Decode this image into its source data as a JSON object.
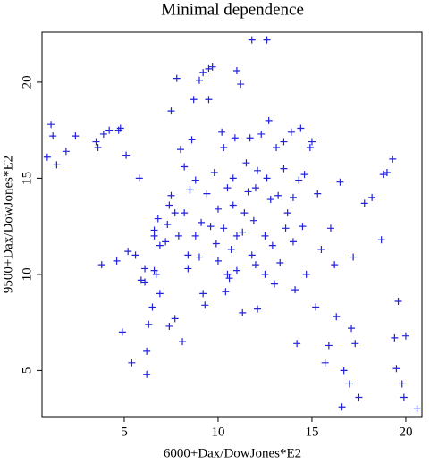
{
  "chart_data": {
    "type": "scatter",
    "title": "Minimal dependence",
    "x_label": "6000+Dax/DowJones*E2",
    "y_label": "9500+Dax/DowJones*E2",
    "marker": "+",
    "color": "#2222dd",
    "xlim": [
      0.62,
      20.86
    ],
    "ylim": [
      2.6,
      22.6
    ],
    "xticks": [
      5,
      10,
      15,
      20
    ],
    "yticks": [
      5,
      10,
      15,
      20
    ],
    "x": [
      0.9,
      1.1,
      1.2,
      1.4,
      1.9,
      2.4,
      3.5,
      3.6,
      3.9,
      4.2,
      4.7,
      4.8,
      3.8,
      4.6,
      4.9,
      5.1,
      5.2,
      5.4,
      5.6,
      5.8,
      5.9,
      6.1,
      6.1,
      6.2,
      6.2,
      6.3,
      6.5,
      6.6,
      6.7,
      6.6,
      6.6,
      6.8,
      6.9,
      6.9,
      7.2,
      7.3,
      7.4,
      7.4,
      7.5,
      7.5,
      7.7,
      7.7,
      7.8,
      7.9,
      8.0,
      8.1,
      8.2,
      8.2,
      8.4,
      8.4,
      8.5,
      8.6,
      8.7,
      8.8,
      8.8,
      9.0,
      9.0,
      9.1,
      9.2,
      9.2,
      9.3,
      9.4,
      9.5,
      9.5,
      9.6,
      9.7,
      9.8,
      9.9,
      10.0,
      10.0,
      10.2,
      10.3,
      10.3,
      10.4,
      10.5,
      10.6,
      10.7,
      10.8,
      10.9,
      11.0,
      11.0,
      11.2,
      11.3,
      11.3,
      11.4,
      11.6,
      11.7,
      11.8,
      11.8,
      11.9,
      12.0,
      12.1,
      12.1,
      12.3,
      12.5,
      12.6,
      12.6,
      12.7,
      12.8,
      12.9,
      13.0,
      13.1,
      13.2,
      13.3,
      13.5,
      13.6,
      13.7,
      13.9,
      14.0,
      14.1,
      14.2,
      14.3,
      14.4,
      14.5,
      14.6,
      14.7,
      14.9,
      15.0,
      15.2,
      15.3,
      15.5,
      15.7,
      15.9,
      16.0,
      16.2,
      16.3,
      16.5,
      16.6,
      16.7,
      17.0,
      17.1,
      17.2,
      17.3,
      17.5,
      17.8,
      18.2,
      18.7,
      18.8,
      19.0,
      19.3,
      19.4,
      19.5,
      19.6,
      19.8,
      19.9,
      20.0,
      20.6,
      14.0,
      12.0,
      11.5,
      10.8,
      13.5,
      12.5,
      11.0,
      10.5
    ],
    "y": [
      16.1,
      17.8,
      17.2,
      15.7,
      16.4,
      17.2,
      16.9,
      16.6,
      17.3,
      17.5,
      17.5,
      17.6,
      10.5,
      10.7,
      7.0,
      16.2,
      11.2,
      5.4,
      11.0,
      15.0,
      9.7,
      9.6,
      10.3,
      6.0,
      4.8,
      7.4,
      8.3,
      10.2,
      10.0,
      12.0,
      12.3,
      12.9,
      9.0,
      11.5,
      11.7,
      12.6,
      7.3,
      13.6,
      18.5,
      14.1,
      13.2,
      7.7,
      20.2,
      12.0,
      16.5,
      6.5,
      15.6,
      13.2,
      11.0,
      10.3,
      14.4,
      17.0,
      19.1,
      12.0,
      14.9,
      20.1,
      10.9,
      12.7,
      20.5,
      9.0,
      8.4,
      14.2,
      20.7,
      19.1,
      12.5,
      20.8,
      15.3,
      11.6,
      13.4,
      10.7,
      17.4,
      16.6,
      12.4,
      9.1,
      14.5,
      9.8,
      11.3,
      13.6,
      17.1,
      10.2,
      20.6,
      19.9,
      12.2,
      8.0,
      13.2,
      14.3,
      17.1,
      22.2,
      11.0,
      12.8,
      10.5,
      15.4,
      8.2,
      17.3,
      12.0,
      22.2,
      15.0,
      18.0,
      13.9,
      11.5,
      9.5,
      16.6,
      14.1,
      10.6,
      16.9,
      12.4,
      13.2,
      17.4,
      11.7,
      9.2,
      6.4,
      14.9,
      17.6,
      12.5,
      15.2,
      10.0,
      16.6,
      16.9,
      8.3,
      14.2,
      11.3,
      5.4,
      6.3,
      12.4,
      10.5,
      7.8,
      14.8,
      3.1,
      5.0,
      4.3,
      7.2,
      10.9,
      6.4,
      3.6,
      13.7,
      14.0,
      11.8,
      15.2,
      15.3,
      16.0,
      6.7,
      5.1,
      8.6,
      4.3,
      3.6,
      6.8,
      3.0,
      14.0,
      14.5,
      15.8,
      15.0,
      15.5,
      10.0,
      12.0,
      10.0
    ]
  }
}
